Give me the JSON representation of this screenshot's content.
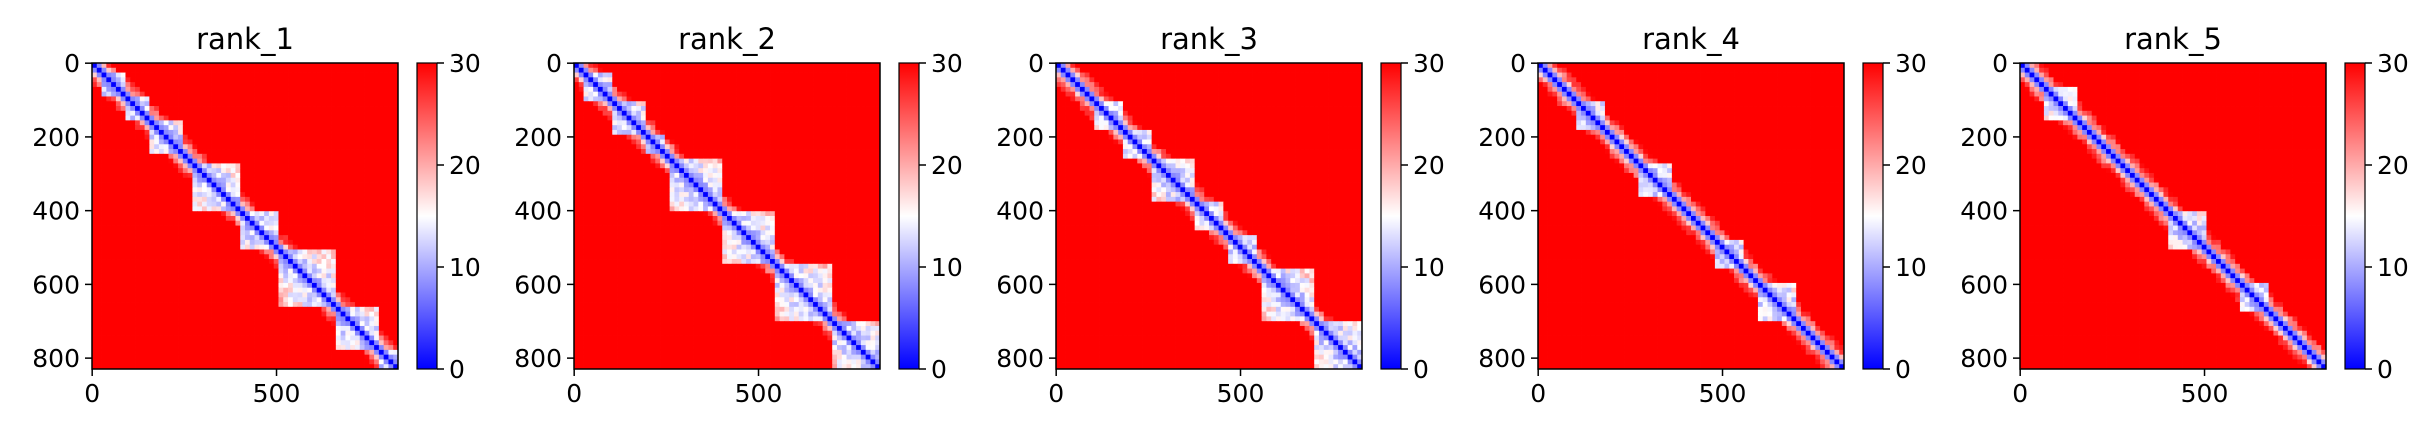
{
  "chart_data": [
    {
      "type": "heatmap",
      "title": "rank_1",
      "xlabel": "",
      "ylabel": "",
      "x_ticks": [
        0,
        500
      ],
      "y_ticks": [
        0,
        200,
        400,
        600,
        800
      ],
      "matrix_size": 830,
      "colorbar": {
        "min": 0,
        "max": 30,
        "ticks": [
          0,
          10,
          20,
          30
        ]
      },
      "diagonal_blocks": [
        [
          25,
          90
        ],
        [
          90,
          160
        ],
        [
          160,
          240
        ],
        [
          270,
          400
        ],
        [
          400,
          500
        ],
        [
          500,
          660
        ],
        [
          660,
          780
        ],
        [
          780,
          830
        ]
      ]
    },
    {
      "type": "heatmap",
      "title": "rank_2",
      "xlabel": "",
      "ylabel": "",
      "x_ticks": [
        0,
        500
      ],
      "y_ticks": [
        0,
        200,
        400,
        600,
        800
      ],
      "matrix_size": 830,
      "colorbar": {
        "min": 0,
        "max": 30,
        "ticks": [
          0,
          10,
          20,
          30
        ]
      },
      "diagonal_blocks": [
        [
          30,
          110
        ],
        [
          110,
          200
        ],
        [
          200,
          250
        ],
        [
          260,
          400
        ],
        [
          400,
          550
        ],
        [
          550,
          700
        ],
        [
          700,
          830
        ]
      ]
    },
    {
      "type": "heatmap",
      "title": "rank_3",
      "xlabel": "",
      "ylabel": "",
      "x_ticks": [
        0,
        500
      ],
      "y_ticks": [
        0,
        200,
        400,
        600,
        800
      ],
      "matrix_size": 830,
      "colorbar": {
        "min": 0,
        "max": 30,
        "ticks": [
          0,
          10,
          20,
          30
        ]
      },
      "diagonal_blocks": [
        [
          100,
          180
        ],
        [
          180,
          260
        ],
        [
          260,
          370
        ],
        [
          380,
          460
        ],
        [
          470,
          540
        ],
        [
          560,
          700
        ],
        [
          700,
          830
        ]
      ]
    },
    {
      "type": "heatmap",
      "title": "rank_4",
      "xlabel": "",
      "ylabel": "",
      "x_ticks": [
        0,
        500
      ],
      "y_ticks": [
        0,
        200,
        400,
        600,
        800
      ],
      "matrix_size": 830,
      "colorbar": {
        "min": 0,
        "max": 30,
        "ticks": [
          0,
          10,
          20,
          30
        ]
      },
      "diagonal_blocks": [
        [
          100,
          180
        ],
        [
          270,
          360
        ],
        [
          480,
          560
        ],
        [
          600,
          700
        ]
      ]
    },
    {
      "type": "heatmap",
      "title": "rank_5",
      "xlabel": "",
      "ylabel": "",
      "x_ticks": [
        0,
        500
      ],
      "y_ticks": [
        0,
        200,
        400,
        600,
        800
      ],
      "matrix_size": 830,
      "colorbar": {
        "min": 0,
        "max": 30,
        "ticks": [
          0,
          10,
          20,
          30
        ]
      },
      "diagonal_blocks": [
        [
          60,
          160
        ],
        [
          400,
          500
        ],
        [
          600,
          680
        ]
      ]
    }
  ],
  "colors": {
    "low": "#0000ff",
    "mid": "#ffffff",
    "high": "#ff0000"
  }
}
